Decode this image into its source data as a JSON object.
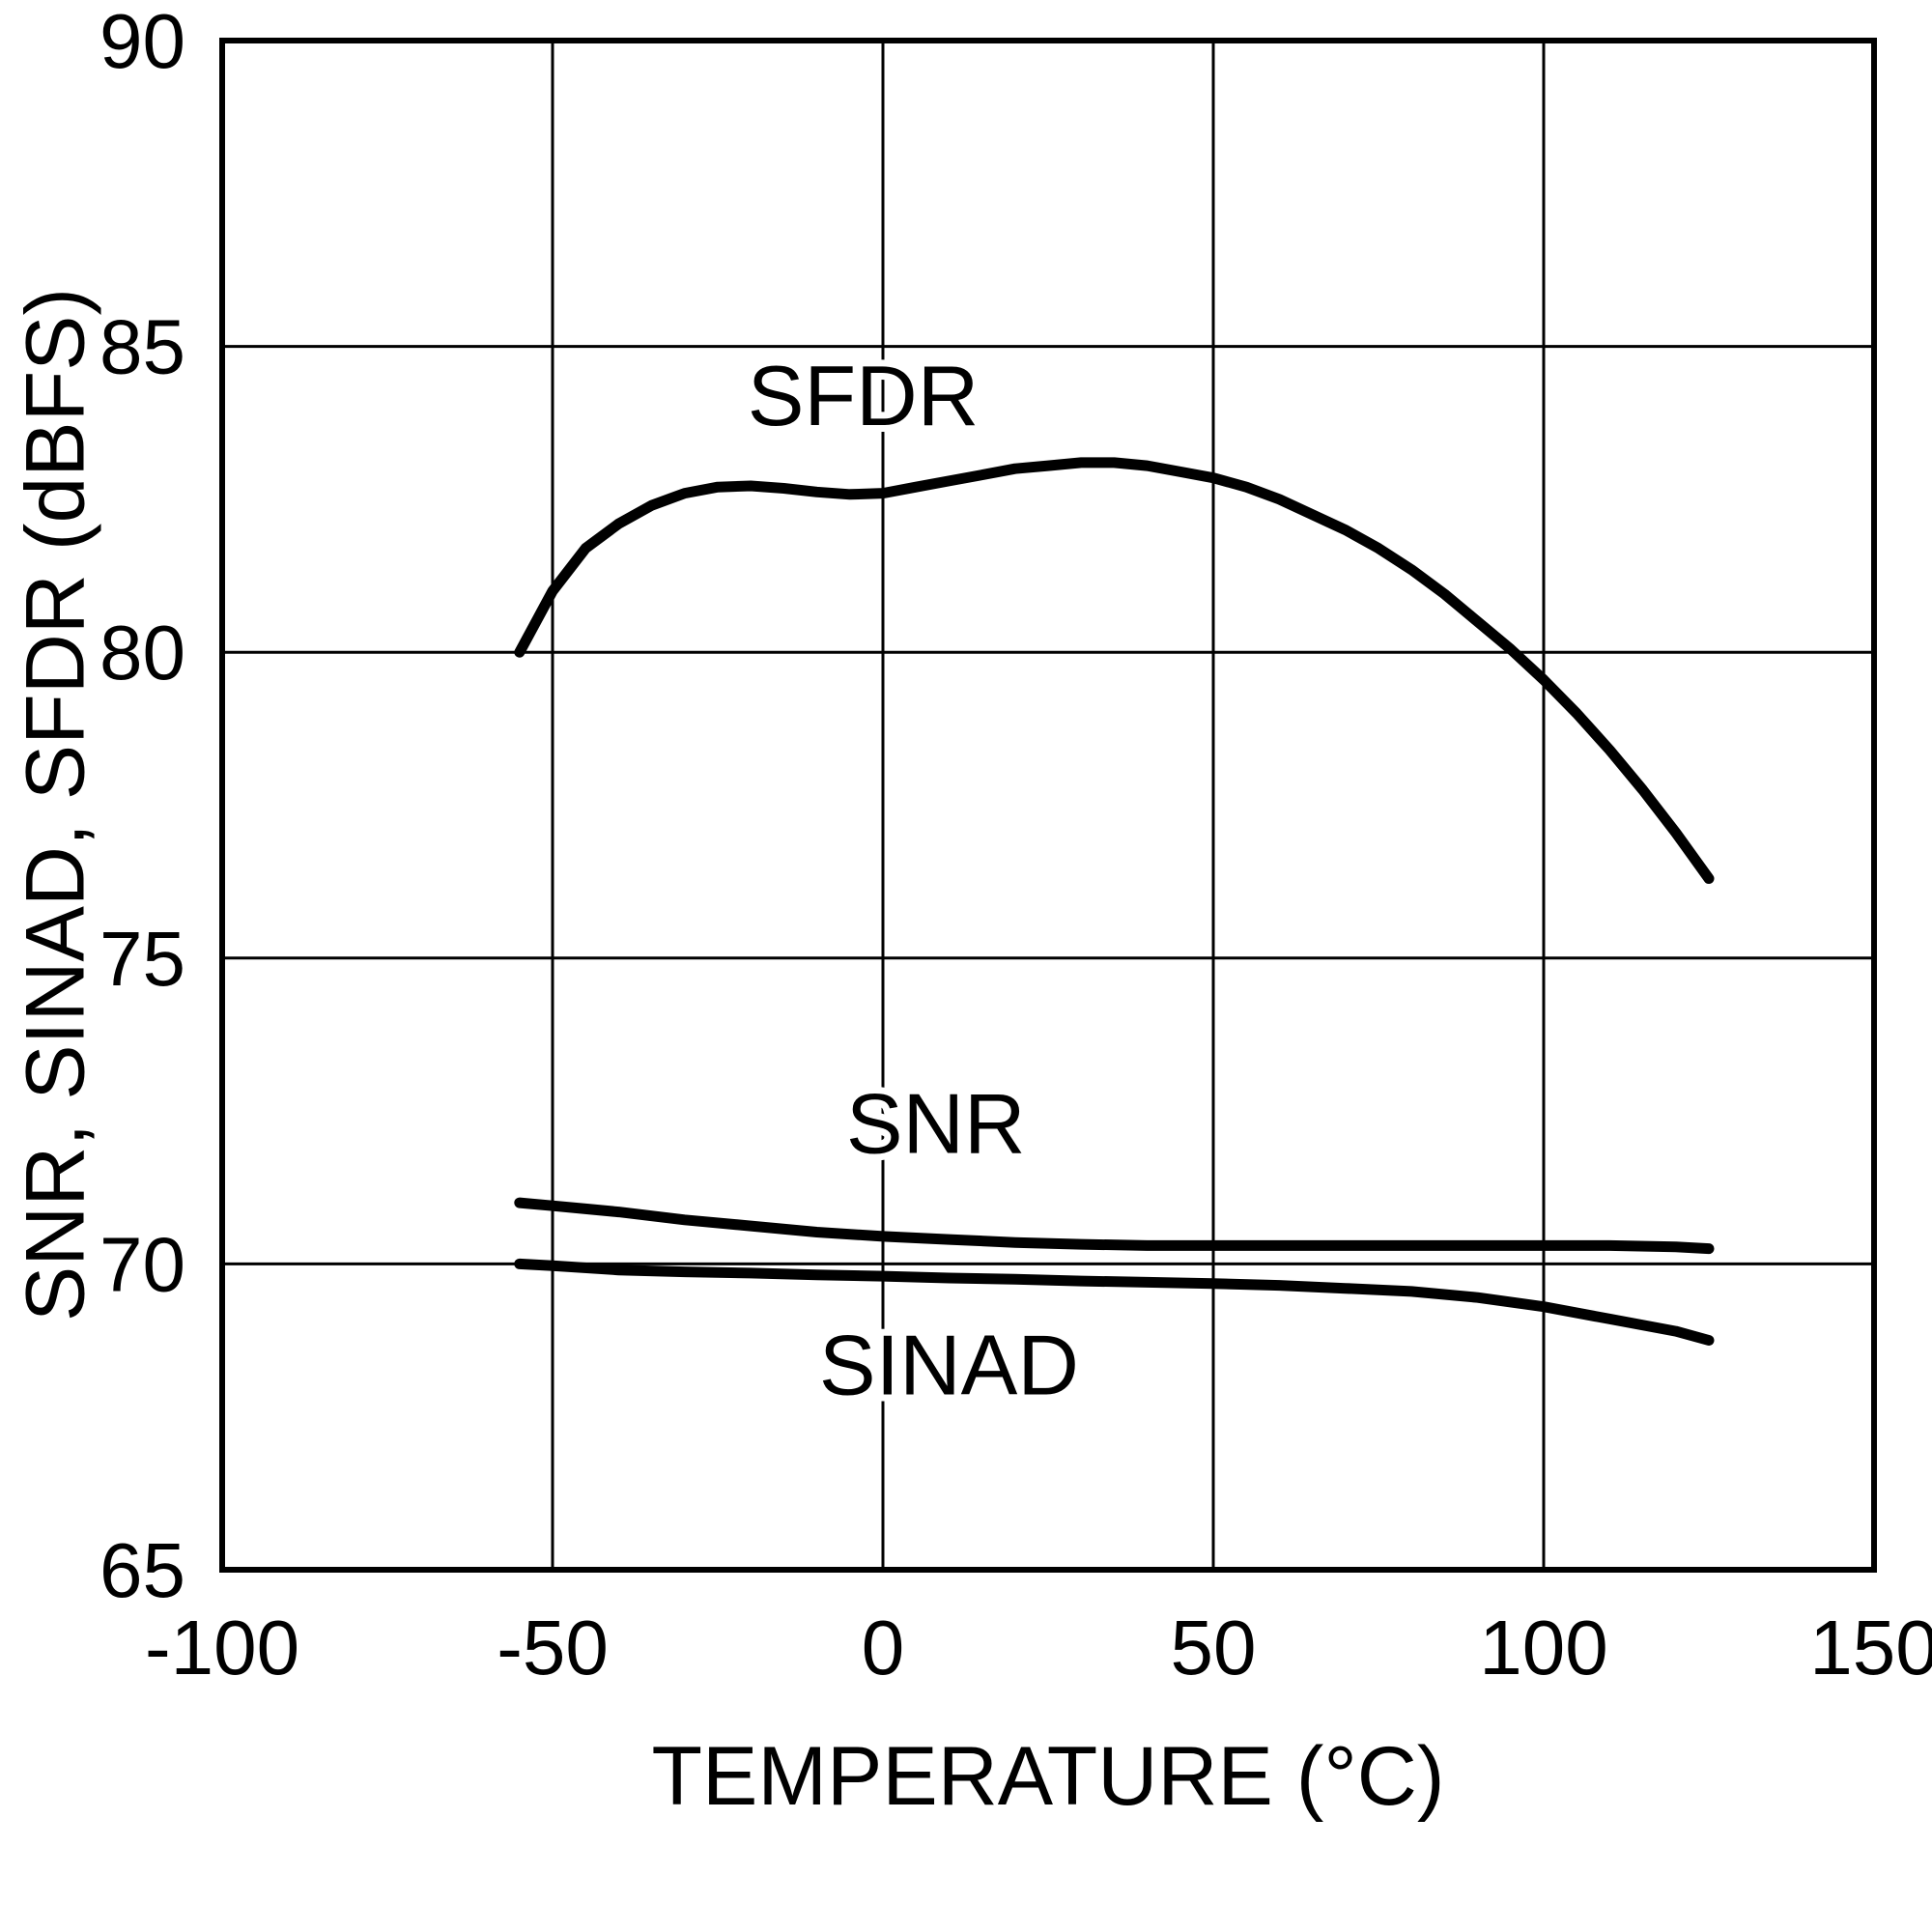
{
  "page": {
    "background": "#ffffff",
    "line_color": "#000000"
  },
  "chart_data": {
    "type": "line",
    "title": "",
    "xlabel": "TEMPERATURE (°C)",
    "ylabel": "SNR, SINAD, SFDR (dBFS)",
    "xlim": [
      -100,
      150
    ],
    "ylim": [
      65,
      90
    ],
    "xticks": [
      -100,
      -50,
      0,
      50,
      100,
      150
    ],
    "yticks": [
      65,
      70,
      75,
      80,
      85,
      90
    ],
    "grid": true,
    "legend_position": "inline-labels",
    "series": [
      {
        "name": "SFDR",
        "points": [
          [
            -55,
            80.0
          ],
          [
            -50,
            81.0
          ],
          [
            -45,
            81.7
          ],
          [
            -40,
            82.1
          ],
          [
            -35,
            82.4
          ],
          [
            -30,
            82.6
          ],
          [
            -25,
            82.7
          ],
          [
            -20,
            82.72
          ],
          [
            -15,
            82.68
          ],
          [
            -10,
            82.62
          ],
          [
            -5,
            82.58
          ],
          [
            0,
            82.6
          ],
          [
            5,
            82.7
          ],
          [
            10,
            82.8
          ],
          [
            15,
            82.9
          ],
          [
            20,
            83.0
          ],
          [
            25,
            83.05
          ],
          [
            30,
            83.1
          ],
          [
            35,
            83.1
          ],
          [
            40,
            83.05
          ],
          [
            45,
            82.95
          ],
          [
            50,
            82.85
          ],
          [
            55,
            82.7
          ],
          [
            60,
            82.5
          ],
          [
            65,
            82.25
          ],
          [
            70,
            82.0
          ],
          [
            75,
            81.7
          ],
          [
            80,
            81.35
          ],
          [
            85,
            80.95
          ],
          [
            90,
            80.5
          ],
          [
            95,
            80.05
          ],
          [
            100,
            79.55
          ],
          [
            105,
            79.0
          ],
          [
            110,
            78.4
          ],
          [
            115,
            77.75
          ],
          [
            120,
            77.05
          ],
          [
            125,
            76.3
          ]
        ]
      },
      {
        "name": "SNR",
        "points": [
          [
            -55,
            71.0
          ],
          [
            -50,
            70.95
          ],
          [
            -45,
            70.9
          ],
          [
            -40,
            70.85
          ],
          [
            -30,
            70.72
          ],
          [
            -20,
            70.62
          ],
          [
            -10,
            70.52
          ],
          [
            0,
            70.45
          ],
          [
            10,
            70.4
          ],
          [
            20,
            70.35
          ],
          [
            30,
            70.32
          ],
          [
            40,
            70.3
          ],
          [
            50,
            70.3
          ],
          [
            60,
            70.3
          ],
          [
            70,
            70.3
          ],
          [
            80,
            70.3
          ],
          [
            90,
            70.3
          ],
          [
            100,
            70.3
          ],
          [
            110,
            70.3
          ],
          [
            120,
            70.28
          ],
          [
            125,
            70.25
          ]
        ]
      },
      {
        "name": "SINAD",
        "points": [
          [
            -55,
            70.0
          ],
          [
            -50,
            69.97
          ],
          [
            -40,
            69.9
          ],
          [
            -30,
            69.87
          ],
          [
            -20,
            69.85
          ],
          [
            -10,
            69.82
          ],
          [
            0,
            69.8
          ],
          [
            10,
            69.77
          ],
          [
            20,
            69.75
          ],
          [
            30,
            69.72
          ],
          [
            40,
            69.7
          ],
          [
            50,
            69.68
          ],
          [
            60,
            69.65
          ],
          [
            70,
            69.6
          ],
          [
            80,
            69.55
          ],
          [
            90,
            69.45
          ],
          [
            100,
            69.3
          ],
          [
            110,
            69.1
          ],
          [
            120,
            68.9
          ],
          [
            125,
            68.75
          ]
        ]
      }
    ],
    "annotations": [
      {
        "text": "SFDR",
        "x": -3,
        "y": 84.2
      },
      {
        "text": "SNR",
        "x": 8,
        "y": 72.3
      },
      {
        "text": "SINAD",
        "x": 10,
        "y": 68.35
      }
    ]
  }
}
